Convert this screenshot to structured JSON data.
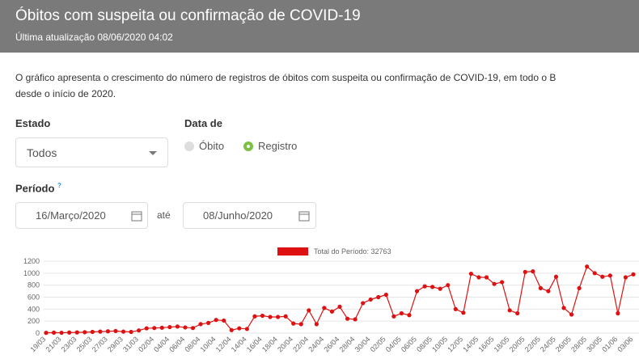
{
  "header": {
    "title": "Óbitos com suspeita ou confirmação de COVID-19",
    "subtitle": "Última atualização 08/06/2020 04:02"
  },
  "description": [
    "O gráfico apresenta o crescimento do número de registros de óbitos com suspeita ou confirmação de COVID-19, em todo o B",
    "desde o início de 2020."
  ],
  "filters": {
    "estado": {
      "label": "Estado",
      "value": "Todos"
    },
    "data_de": {
      "label": "Data de",
      "options": [
        "Óbito",
        "Registro"
      ],
      "selected": 1
    },
    "periodo": {
      "label": "Período",
      "help": "?",
      "start": "16/Março/2020",
      "separator": "até",
      "end": "08/Junho/2020"
    }
  },
  "chart_data": {
    "type": "line",
    "categories": [
      "19/03",
      null,
      "21/03",
      null,
      "23/03",
      null,
      "25/03",
      null,
      "27/03",
      null,
      "29/03",
      null,
      "31/03",
      null,
      "02/04",
      null,
      "04/04",
      null,
      "06/04",
      null,
      "08/04",
      null,
      "10/04",
      null,
      "12/04",
      null,
      "14/04",
      null,
      "16/04",
      null,
      "18/04",
      null,
      "20/04",
      null,
      "22/04",
      null,
      "24/04",
      null,
      "26/04",
      null,
      "28/04",
      null,
      "30/04",
      null,
      "02/05",
      null,
      "04/05",
      null,
      "06/05",
      null,
      "08/05",
      null,
      "10/05",
      null,
      "12/05",
      null,
      "14/05",
      null,
      "16/05",
      null,
      "18/05",
      null,
      "20/05",
      null,
      "22/05",
      null,
      "24/05",
      null,
      "26/05",
      null,
      "28/05",
      null,
      "30/05",
      null,
      "01/06",
      null,
      "03/06"
    ],
    "series": [
      {
        "name": "Total do Período: 32763",
        "color": "#dd1111",
        "values": [
          5,
          8,
          6,
          10,
          12,
          15,
          20,
          25,
          30,
          35,
          25,
          20,
          45,
          80,
          85,
          90,
          100,
          110,
          95,
          85,
          150,
          170,
          220,
          210,
          50,
          80,
          70,
          280,
          290,
          270,
          270,
          280,
          160,
          150,
          380,
          150,
          420,
          360,
          440,
          240,
          230,
          500,
          560,
          600,
          640,
          280,
          330,
          300,
          700,
          780,
          770,
          740,
          800,
          400,
          340,
          990,
          930,
          930,
          820,
          850,
          380,
          330,
          1020,
          1030,
          750,
          700,
          940,
          420,
          310,
          750,
          1110,
          1000,
          940,
          960,
          330,
          930,
          980
        ]
      }
    ],
    "ylim": [
      0,
      1200
    ],
    "yticks": [
      0,
      200,
      400,
      600,
      800,
      1000,
      1200
    ],
    "grid": true
  }
}
